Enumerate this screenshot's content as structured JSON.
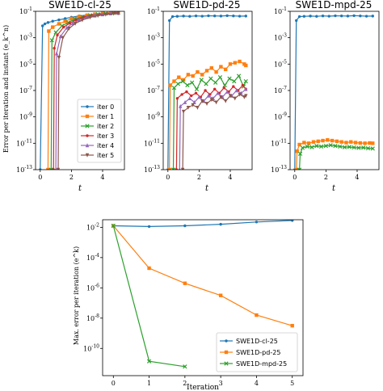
{
  "chart_data": [
    {
      "type": "line",
      "title": "SWE1D-cl-25",
      "xlabel": "t",
      "ylabel": "Error per iteration and instant (e_k^n)",
      "xlim": [
        -0.3,
        5.4
      ],
      "ylim": [
        -13,
        -1
      ],
      "yscale": "log",
      "x_ticks": [
        0,
        2,
        4
      ],
      "y_ticks": [
        -13,
        -11,
        -9,
        -7,
        -5,
        -3,
        -1
      ],
      "legend_placement": "center-right",
      "series": [
        {
          "name": "iter 0",
          "color": "#1f77b4",
          "marker": "dot",
          "x": [
            0.0,
            0.15,
            0.3,
            0.5,
            0.8,
            1.2,
            1.6,
            2.0,
            2.5,
            3.0,
            3.5,
            4.0,
            4.5,
            5.0
          ],
          "y": [
            -13,
            -2.1,
            -1.95,
            -1.85,
            -1.75,
            -1.65,
            -1.55,
            -1.45,
            -1.35,
            -1.28,
            -1.22,
            -1.17,
            -1.12,
            -1.1
          ]
        },
        {
          "name": "iter 1",
          "color": "#ff7f0e",
          "marker": "square",
          "x": [
            0.5,
            0.55,
            0.8,
            1.2,
            1.6,
            2.0,
            2.5,
            3.0,
            3.5,
            4.0,
            4.5,
            5.0
          ],
          "y": [
            -13,
            -2.5,
            -2.2,
            -1.95,
            -1.75,
            -1.55,
            -1.4,
            -1.3,
            -1.22,
            -1.15,
            -1.1,
            -1.07
          ]
        },
        {
          "name": "iter 2",
          "color": "#2ca02c",
          "marker": "x",
          "x": [
            0.7,
            0.75,
            1.0,
            1.4,
            1.8,
            2.2,
            2.7,
            3.2,
            3.7,
            4.2,
            4.7,
            5.0
          ],
          "y": [
            -13,
            -3.2,
            -2.6,
            -2.1,
            -1.85,
            -1.6,
            -1.42,
            -1.3,
            -1.22,
            -1.16,
            -1.12,
            -1.1
          ]
        },
        {
          "name": "iter 3",
          "color": "#d62728",
          "marker": "dot",
          "x": [
            0.85,
            0.9,
            1.1,
            1.5,
            1.9,
            2.3,
            2.8,
            3.3,
            3.8,
            4.3,
            4.8,
            5.0
          ],
          "y": [
            -13,
            -3.8,
            -2.8,
            -2.2,
            -1.9,
            -1.65,
            -1.45,
            -1.32,
            -1.24,
            -1.18,
            -1.13,
            -1.12
          ]
        },
        {
          "name": "iter 4",
          "color": "#9467bd",
          "marker": "triangle-up",
          "x": [
            1.0,
            1.05,
            1.3,
            1.7,
            2.1,
            2.5,
            3.0,
            3.5,
            4.0,
            4.5,
            5.0
          ],
          "y": [
            -13,
            -4.2,
            -2.9,
            -2.25,
            -1.9,
            -1.65,
            -1.45,
            -1.33,
            -1.24,
            -1.17,
            -1.13
          ]
        },
        {
          "name": "iter 5",
          "color": "#8c564b",
          "marker": "triangle-down",
          "x": [
            1.15,
            1.2,
            1.45,
            1.85,
            2.25,
            2.7,
            3.2,
            3.7,
            4.2,
            4.7,
            5.0
          ],
          "y": [
            -13,
            -4.5,
            -3.0,
            -2.3,
            -1.92,
            -1.66,
            -1.46,
            -1.33,
            -1.24,
            -1.17,
            -1.14
          ]
        }
      ]
    },
    {
      "type": "line",
      "title": "SWE1D-pd-25",
      "xlabel": "t",
      "xlim": [
        -0.3,
        5.4
      ],
      "ylim": [
        -13,
        -1
      ],
      "yscale": "log",
      "x_ticks": [
        0,
        2,
        4
      ],
      "y_ticks": [
        -13,
        -11,
        -9,
        -7,
        -5,
        -3,
        -1
      ],
      "series": [
        {
          "name": "iter 0",
          "color": "#1f77b4",
          "marker": "dot",
          "x": [
            0.0,
            0.1,
            0.3,
            0.6,
            1.0,
            1.4,
            1.8,
            2.2,
            2.6,
            3.0,
            3.4,
            3.8,
            4.2,
            4.6,
            5.0
          ],
          "y": [
            -13,
            -1.7,
            -1.4,
            -1.38,
            -1.36,
            -1.38,
            -1.35,
            -1.37,
            -1.34,
            -1.35,
            -1.36,
            -1.33,
            -1.35,
            -1.37,
            -1.36
          ]
        },
        {
          "name": "iter 1",
          "color": "#ff7f0e",
          "marker": "square",
          "x": [
            0.1,
            0.15,
            0.4,
            0.7,
            1.0,
            1.3,
            1.6,
            1.9,
            2.2,
            2.5,
            2.8,
            3.1,
            3.4,
            3.7,
            4.0,
            4.3,
            4.6,
            4.9,
            5.0
          ],
          "y": [
            -13,
            -6.6,
            -6.3,
            -6.0,
            -6.2,
            -5.8,
            -5.9,
            -5.6,
            -5.8,
            -5.5,
            -5.3,
            -5.6,
            -5.2,
            -5.4,
            -5.0,
            -4.9,
            -4.8,
            -5.0,
            -5.1
          ]
        },
        {
          "name": "iter 2",
          "color": "#2ca02c",
          "marker": "x",
          "x": [
            0.35,
            0.4,
            0.65,
            0.95,
            1.25,
            1.55,
            1.85,
            2.15,
            2.45,
            2.75,
            3.05,
            3.35,
            3.65,
            3.95,
            4.25,
            4.55,
            4.85,
            5.0
          ],
          "y": [
            -13,
            -6.8,
            -6.5,
            -6.3,
            -6.6,
            -6.4,
            -6.9,
            -6.2,
            -6.5,
            -6.1,
            -6.4,
            -6.0,
            -6.6,
            -6.1,
            -6.3,
            -5.9,
            -6.7,
            -6.3
          ]
        },
        {
          "name": "iter 3",
          "color": "#d62728",
          "marker": "dot",
          "x": [
            0.55,
            0.6,
            0.9,
            1.2,
            1.5,
            1.8,
            2.1,
            2.4,
            2.7,
            3.0,
            3.3,
            3.6,
            3.9,
            4.2,
            4.5,
            4.8,
            5.0
          ],
          "y": [
            -13,
            -7.6,
            -7.3,
            -7.1,
            -7.4,
            -7.2,
            -7.5,
            -7.0,
            -7.3,
            -6.9,
            -7.2,
            -6.8,
            -7.1,
            -6.7,
            -7.0,
            -6.6,
            -6.9
          ]
        },
        {
          "name": "iter 4",
          "color": "#9467bd",
          "marker": "triangle-up",
          "x": [
            0.75,
            0.8,
            1.1,
            1.4,
            1.7,
            2.0,
            2.3,
            2.6,
            2.9,
            3.2,
            3.5,
            3.8,
            4.1,
            4.4,
            4.7,
            5.0
          ],
          "y": [
            -13,
            -8.2,
            -7.9,
            -7.6,
            -7.9,
            -7.5,
            -7.8,
            -7.4,
            -7.6,
            -7.2,
            -7.5,
            -7.1,
            -7.4,
            -7.0,
            -7.2,
            -6.9
          ]
        },
        {
          "name": "iter 5",
          "color": "#8c564b",
          "marker": "triangle-down",
          "x": [
            0.95,
            1.0,
            1.3,
            1.6,
            1.9,
            2.2,
            2.5,
            2.8,
            3.1,
            3.4,
            3.7,
            4.0,
            4.3,
            4.6,
            4.9,
            5.0
          ],
          "y": [
            -13,
            -8.6,
            -8.3,
            -8.1,
            -8.3,
            -7.8,
            -8.0,
            -7.7,
            -7.9,
            -7.5,
            -7.8,
            -7.4,
            -7.6,
            -7.3,
            -7.5,
            -7.4
          ]
        }
      ]
    },
    {
      "type": "line",
      "title": "SWE1D-mpd-25",
      "xlabel": "t",
      "xlim": [
        -0.3,
        5.4
      ],
      "ylim": [
        -13,
        -1
      ],
      "yscale": "log",
      "x_ticks": [
        0,
        2,
        4
      ],
      "y_ticks": [
        -13,
        -11,
        -9,
        -7,
        -5,
        -3,
        -1
      ],
      "series": [
        {
          "name": "iter 0",
          "color": "#1f77b4",
          "marker": "dot",
          "x": [
            0.0,
            0.1,
            0.3,
            0.6,
            1.0,
            1.4,
            1.8,
            2.2,
            2.6,
            3.0,
            3.4,
            3.8,
            4.2,
            4.6,
            5.0
          ],
          "y": [
            -13,
            -1.7,
            -1.4,
            -1.38,
            -1.36,
            -1.38,
            -1.35,
            -1.37,
            -1.34,
            -1.35,
            -1.36,
            -1.33,
            -1.35,
            -1.37,
            -1.36
          ]
        },
        {
          "name": "iter 1",
          "color": "#ff7f0e",
          "marker": "square",
          "x": [
            0.1,
            0.15,
            0.3,
            0.6,
            0.9,
            1.2,
            1.5,
            1.8,
            2.1,
            2.4,
            2.7,
            3.0,
            3.3,
            3.6,
            3.9,
            4.2,
            4.5,
            4.8,
            5.0
          ],
          "y": [
            -13,
            -11.6,
            -11.1,
            -10.95,
            -11.0,
            -10.9,
            -10.85,
            -10.8,
            -10.75,
            -10.8,
            -10.85,
            -10.9,
            -10.95,
            -10.9,
            -10.95,
            -10.98,
            -11.0,
            -10.98,
            -11.0
          ]
        },
        {
          "name": "iter 2",
          "color": "#2ca02c",
          "marker": "x",
          "x": [
            0.3,
            0.35,
            0.5,
            0.8,
            1.1,
            1.4,
            1.7,
            2.0,
            2.3,
            2.6,
            2.9,
            3.2,
            3.5,
            3.8,
            4.1,
            4.4,
            4.7,
            5.0
          ],
          "y": [
            -13,
            -11.8,
            -11.35,
            -11.25,
            -11.3,
            -11.2,
            -11.25,
            -11.2,
            -11.15,
            -11.2,
            -11.25,
            -11.3,
            -11.28,
            -11.32,
            -11.35,
            -11.33,
            -11.38,
            -11.4
          ]
        }
      ]
    },
    {
      "type": "line",
      "title": "",
      "xlabel": "Iteration",
      "ylabel": "Max. error per iteration (e^k)",
      "xlim": [
        -0.3,
        5.3
      ],
      "ylim": [
        -11.8,
        -1.5
      ],
      "yscale": "log",
      "x_ticks": [
        0,
        1,
        2,
        3,
        4,
        5
      ],
      "y_ticks": [
        -10,
        -8,
        -6,
        -4,
        -2
      ],
      "legend_placement": "lower-right",
      "series": [
        {
          "name": "SWE1D-cl-25",
          "color": "#1f77b4",
          "marker": "dot",
          "x": [
            0,
            1,
            2,
            3,
            4,
            5
          ],
          "y": [
            -1.9,
            -1.95,
            -1.9,
            -1.8,
            -1.65,
            -1.55
          ]
        },
        {
          "name": "SWE1D-pd-25",
          "color": "#ff7f0e",
          "marker": "square",
          "x": [
            0,
            1,
            2,
            3,
            4,
            5
          ],
          "y": [
            -1.9,
            -4.7,
            -5.7,
            -6.5,
            -7.8,
            -8.5
          ]
        },
        {
          "name": "SWE1D-mpd-25",
          "color": "#2ca02c",
          "marker": "x",
          "x": [
            0,
            1,
            2
          ],
          "y": [
            -1.9,
            -10.85,
            -11.2
          ]
        }
      ]
    }
  ]
}
